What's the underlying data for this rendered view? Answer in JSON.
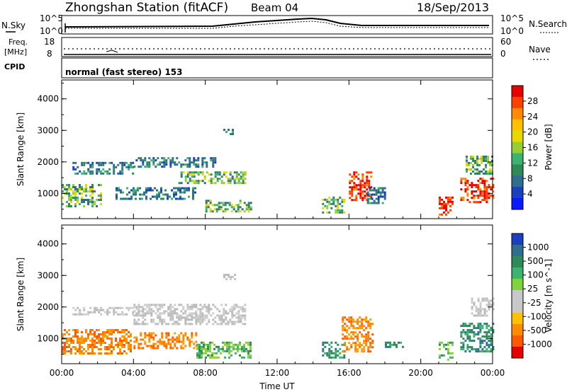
{
  "header": {
    "station": "Zhongshan Station (fitACF)",
    "beam": "Beam 04",
    "date": "18/Sep/2013"
  },
  "strips": {
    "nsky_label": "N.Sky",
    "nsearch_label": "N.Search",
    "nsky_ticks": [
      "10^5",
      "10^0"
    ],
    "nsearch_ticks": [
      "10^5",
      "10^0"
    ],
    "freq_label_1": "Freq.",
    "freq_label_2": "[MHz]",
    "freq_ticks": [
      "18",
      "8"
    ],
    "nave_label": "Nave",
    "nave_ticks": [
      "60",
      "0"
    ],
    "cpid_label": "CPID",
    "cpid_text": "normal (fast stereo) 153"
  },
  "chart_data": [
    {
      "type": "heatmap",
      "name": "power",
      "xlabel": "",
      "ylabel": "Slant Range [km]",
      "yticks": [
        "4000",
        "3000",
        "2000",
        "1000"
      ],
      "yvals": [
        4000,
        3000,
        2000,
        1000
      ],
      "ylim": [
        200,
        4600
      ],
      "xlim": [
        0,
        24
      ],
      "colorbar": {
        "label": "Power [dB]",
        "ticks": [
          "28",
          "24",
          "20",
          "16",
          "12",
          "8",
          "4"
        ],
        "colors": [
          "#e60000",
          "#ff4000",
          "#ff8c00",
          "#ffc000",
          "#e8d800",
          "#9acd32",
          "#3cb371",
          "#2e8b57",
          "#2e6e8e",
          "#1a3fbf",
          "#0a1aff"
        ]
      },
      "clusters": [
        {
          "x0": 0.0,
          "x1": 2.2,
          "y0": 600,
          "y1": 1300,
          "level": "mid"
        },
        {
          "x0": 0.6,
          "x1": 4.0,
          "y0": 1650,
          "y1": 2000,
          "level": "low"
        },
        {
          "x0": 4.0,
          "x1": 8.5,
          "y0": 1850,
          "y1": 2150,
          "level": "low"
        },
        {
          "x0": 6.5,
          "x1": 10.2,
          "y0": 1350,
          "y1": 1700,
          "level": "mid"
        },
        {
          "x0": 3.0,
          "x1": 7.5,
          "y0": 800,
          "y1": 1200,
          "level": "low"
        },
        {
          "x0": 8.0,
          "x1": 10.5,
          "y0": 400,
          "y1": 800,
          "level": "mid"
        },
        {
          "x0": 9.0,
          "x1": 9.7,
          "y0": 2850,
          "y1": 3050,
          "level": "low"
        },
        {
          "x0": 14.5,
          "x1": 15.8,
          "y0": 400,
          "y1": 900,
          "level": "mid"
        },
        {
          "x0": 16.0,
          "x1": 17.3,
          "y0": 800,
          "y1": 1700,
          "level": "high"
        },
        {
          "x0": 17.0,
          "x1": 18.0,
          "y0": 700,
          "y1": 1200,
          "level": "low"
        },
        {
          "x0": 21.0,
          "x1": 21.8,
          "y0": 300,
          "y1": 900,
          "level": "high"
        },
        {
          "x0": 22.2,
          "x1": 24.0,
          "y0": 700,
          "y1": 1500,
          "level": "high"
        },
        {
          "x0": 22.5,
          "x1": 24.0,
          "y0": 1600,
          "y1": 2200,
          "level": "mid"
        }
      ]
    },
    {
      "type": "heatmap",
      "name": "velocity",
      "xlabel": "Time UT",
      "ylabel": "Slant Range [km]",
      "yticks": [
        "4000",
        "3000",
        "2000",
        "1000"
      ],
      "yvals": [
        4000,
        3000,
        2000,
        1000
      ],
      "ylim": [
        200,
        4600
      ],
      "xlim": [
        0,
        24
      ],
      "xticks": [
        "00:00",
        "04:00",
        "08:00",
        "12:00",
        "16:00",
        "20:00",
        "00:00"
      ],
      "xvals": [
        0,
        4,
        8,
        12,
        16,
        20,
        24
      ],
      "colorbar": {
        "label": "Velocity [m s^-1]",
        "ticks": [
          "1000",
          "500",
          "100",
          "25",
          "-25",
          "-100",
          "-500",
          "-1000"
        ],
        "colors": [
          "#1a3fbf",
          "#2e6e8e",
          "#2e8b57",
          "#3cb371",
          "#7fd33c",
          "#c8c8c8",
          "#c8c8c8",
          "#ffc000",
          "#ff8c00",
          "#ff5a00",
          "#e60000"
        ]
      },
      "clusters": [
        {
          "x0": 0.0,
          "x1": 3.8,
          "y0": 500,
          "y1": 1300,
          "level": "orange"
        },
        {
          "x0": 0.6,
          "x1": 4.0,
          "y0": 1750,
          "y1": 2000,
          "level": "gray"
        },
        {
          "x0": 4.0,
          "x1": 10.2,
          "y0": 1450,
          "y1": 2100,
          "level": "gray"
        },
        {
          "x0": 4.0,
          "x1": 7.5,
          "y0": 700,
          "y1": 1200,
          "level": "orange"
        },
        {
          "x0": 7.5,
          "x1": 10.5,
          "y0": 400,
          "y1": 900,
          "level": "green"
        },
        {
          "x0": 9.0,
          "x1": 9.7,
          "y0": 2850,
          "y1": 3050,
          "level": "gray"
        },
        {
          "x0": 14.5,
          "x1": 15.8,
          "y0": 400,
          "y1": 900,
          "level": "teal"
        },
        {
          "x0": 15.6,
          "x1": 17.3,
          "y0": 600,
          "y1": 1700,
          "level": "orange"
        },
        {
          "x0": 18.0,
          "x1": 19.0,
          "y0": 700,
          "y1": 900,
          "level": "teal"
        },
        {
          "x0": 21.0,
          "x1": 21.8,
          "y0": 300,
          "y1": 900,
          "level": "green"
        },
        {
          "x0": 22.2,
          "x1": 24.0,
          "y0": 600,
          "y1": 1500,
          "level": "teal"
        },
        {
          "x0": 22.8,
          "x1": 24.0,
          "y0": 1750,
          "y1": 2300,
          "level": "gray"
        }
      ]
    }
  ]
}
